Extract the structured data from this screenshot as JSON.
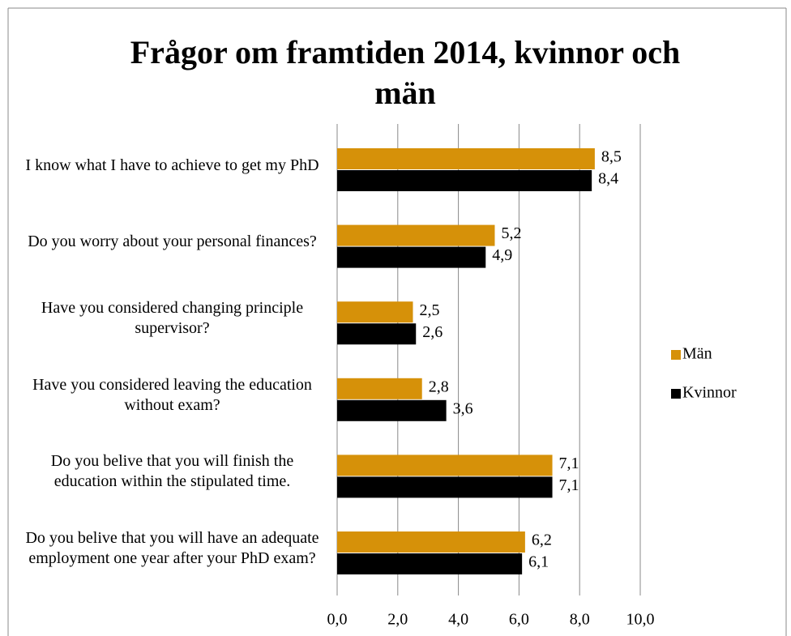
{
  "chart_data": {
    "type": "barh",
    "title": "Frågor om framtiden 2014, kvinnor och män",
    "categories": [
      "I know what I have to achieve to get my PhD",
      "Do you worry about your personal finances?",
      "Have you considered changing principle supervisor?",
      "Have you considered leaving the education without exam?",
      "Do you belive that you will finish the education within the stipulated time.",
      "Do you belive that you will have an adequate employment one year after your PhD exam?"
    ],
    "series": [
      {
        "name": "Män",
        "color": "#d69109",
        "values": [
          8.5,
          5.2,
          2.5,
          2.8,
          7.1,
          6.2
        ],
        "value_labels": [
          "8,5",
          "5,2",
          "2,5",
          "2,8",
          "7,1",
          "6,2"
        ]
      },
      {
        "name": "Kvinnor",
        "color": "#000000",
        "values": [
          8.4,
          4.9,
          2.6,
          3.6,
          7.1,
          6.1
        ],
        "value_labels": [
          "8,4",
          "4,9",
          "2,6",
          "3,6",
          "7,1",
          "6,1"
        ]
      }
    ],
    "xlim": [
      0,
      10
    ],
    "xticks": [
      {
        "value": 0,
        "label": "0,0"
      },
      {
        "value": 2,
        "label": "2,0"
      },
      {
        "value": 4,
        "label": "4,0"
      },
      {
        "value": 6,
        "label": "6,0"
      },
      {
        "value": 8,
        "label": "8,0"
      },
      {
        "value": 10,
        "label": "10,0"
      }
    ],
    "grid": true,
    "legend": "right"
  }
}
